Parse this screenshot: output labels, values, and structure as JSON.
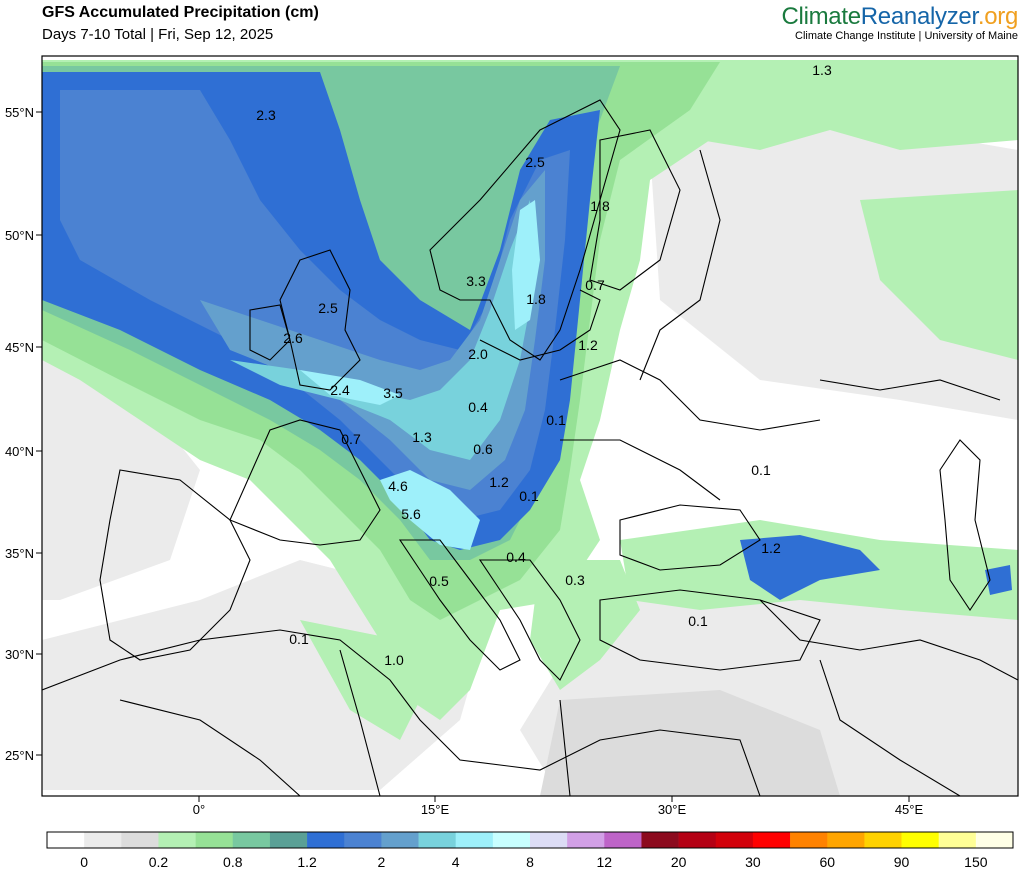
{
  "header": {
    "title": "GFS Accumulated Precipitation (cm)",
    "subtitle": "Days 7-10 Total | Fri, Sep 12, 2025"
  },
  "branding": {
    "name_part1": "Climate",
    "name_part2": "Reanalyzer",
    "name_part3": ".org",
    "subtitle": "Climate Change Institute | University of Maine"
  },
  "axes": {
    "lat_labels": [
      "55°N",
      "50°N",
      "45°N",
      "40°N",
      "35°N",
      "30°N",
      "25°N"
    ],
    "lon_labels": [
      "0°",
      "15°E",
      "30°E",
      "45°E"
    ]
  },
  "map_labels": [
    {
      "text": "2.3",
      "region": "faroe"
    },
    {
      "text": "2.5",
      "region": "central-sweden"
    },
    {
      "text": "1.8",
      "region": "finland"
    },
    {
      "text": "1.3",
      "region": "arctic-russia"
    },
    {
      "text": "3.3",
      "region": "sweden-west"
    },
    {
      "text": "1.8",
      "region": "gulf-of-bothnia"
    },
    {
      "text": "0.7",
      "region": "estonia"
    },
    {
      "text": "2.5",
      "region": "scotland"
    },
    {
      "text": "2.6",
      "region": "ireland"
    },
    {
      "text": "2.0",
      "region": "denmark"
    },
    {
      "text": "1.2",
      "region": "latvia"
    },
    {
      "text": "2.4",
      "region": "english-channel"
    },
    {
      "text": "3.5",
      "region": "low-countries"
    },
    {
      "text": "0.4",
      "region": "poland"
    },
    {
      "text": "0.1",
      "region": "belarus"
    },
    {
      "text": "0.7",
      "region": "northern-france"
    },
    {
      "text": "1.3",
      "region": "germany"
    },
    {
      "text": "0.6",
      "region": "czechia"
    },
    {
      "text": "0.1",
      "region": "southern-russia"
    },
    {
      "text": "4.6",
      "region": "switzerland"
    },
    {
      "text": "1.2",
      "region": "slovakia"
    },
    {
      "text": "0.1",
      "region": "ukraine"
    },
    {
      "text": "5.6",
      "region": "northern-italy"
    },
    {
      "text": "0.4",
      "region": "serbia"
    },
    {
      "text": "1.2",
      "region": "caucasus"
    },
    {
      "text": "0.3",
      "region": "bulgaria"
    },
    {
      "text": "0.5",
      "region": "central-italy"
    },
    {
      "text": "0.1",
      "region": "anatolia"
    },
    {
      "text": "0.1",
      "region": "algeria"
    },
    {
      "text": "1.0",
      "region": "tunisia"
    }
  ],
  "colorbar": {
    "labels": [
      "0",
      "0.2",
      "0.8",
      "1.2",
      "2",
      "4",
      "8",
      "12",
      "20",
      "30",
      "60",
      "90",
      "150"
    ],
    "colors": [
      "#ffffff",
      "#ebebeb",
      "#dcdcdc",
      "#b4f0b4",
      "#96e196",
      "#78c8a0",
      "#5aa096",
      "#2f6fd4",
      "#4b82d2",
      "#64a0cd",
      "#78d2dc",
      "#9ef0fa",
      "#c8ffff",
      "#dcdcf5",
      "#d2a0e6",
      "#be64c8",
      "#8c0a1e",
      "#b40014",
      "#d2000a",
      "#ff0000",
      "#ff8200",
      "#ffa500",
      "#ffd200",
      "#ffff00",
      "#ffff96",
      "#ffffe6"
    ]
  },
  "colors": {
    "green_light": "#b4f0b4",
    "green": "#96e196",
    "teal": "#78c8a0",
    "blue_dark": "#2f6fd4",
    "blue": "#4b82d2",
    "blue_light": "#64a0cd",
    "cyan": "#78d2dc",
    "cyan_light": "#9ef0fa",
    "gray_light": "#ebebeb",
    "gray": "#dcdcdc"
  }
}
